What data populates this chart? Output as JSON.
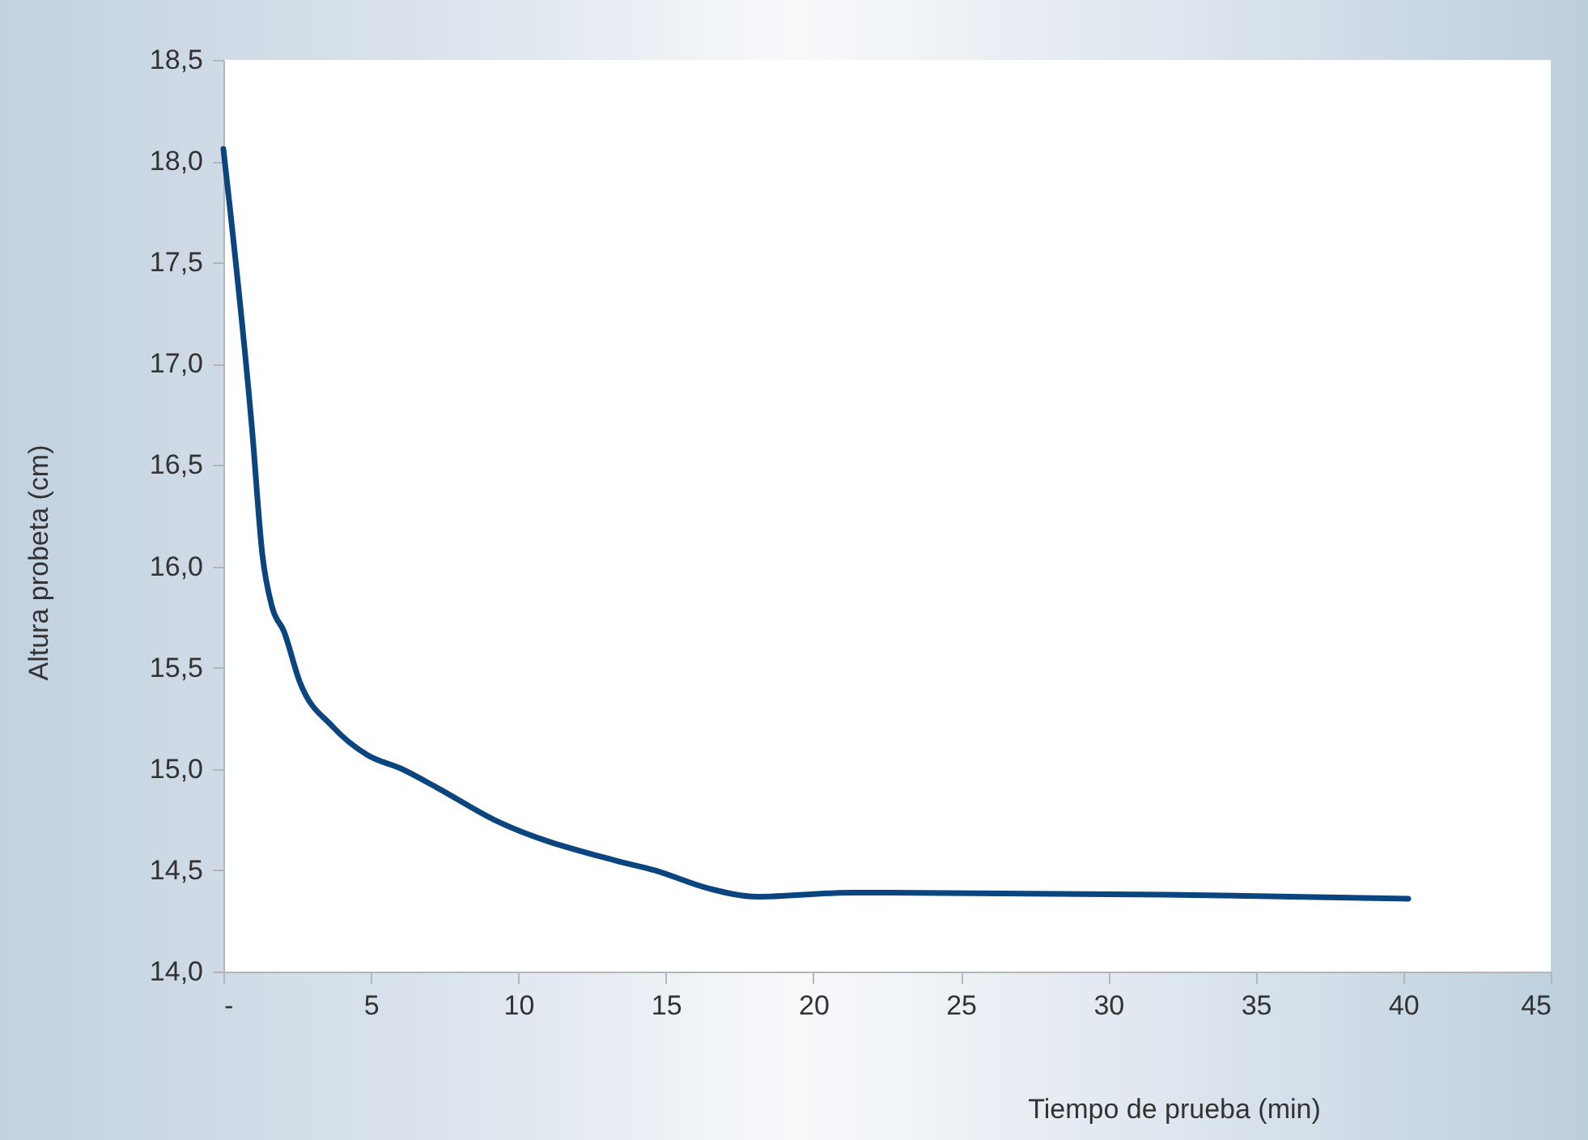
{
  "chart_data": {
    "type": "line",
    "xlabel": "Tiempo de prueba (min)",
    "ylabel": "Altura probeta (cm)",
    "x": [
      0,
      0.97,
      1.32,
      1.65,
      2.05,
      2.59,
      3.7,
      4.87,
      6.05,
      7.22,
      9.17,
      13.24,
      14.62,
      16.46,
      18.07,
      21.3,
      31.89,
      40.17
    ],
    "series": [
      {
        "color": "#0b4580",
        "values": [
          18.06,
          16.68,
          16.06,
          15.8,
          15.68,
          15.43,
          15.21,
          15.07,
          15.0,
          14.91,
          14.75,
          14.55,
          14.5,
          14.41,
          14.37,
          14.39,
          14.38,
          14.36
        ]
      }
    ],
    "xlim": [
      0,
      45
    ],
    "xticks": [
      {
        "value": 0,
        "label": "-"
      },
      5,
      10,
      15,
      20,
      25,
      30,
      35,
      40,
      45
    ],
    "ylim": [
      14,
      18.5
    ],
    "yticks": [
      {
        "value": 14,
        "label": "14,0"
      },
      {
        "value": 14.5,
        "label": "14,5"
      },
      {
        "value": 15,
        "label": "15,0"
      },
      {
        "value": 15.5,
        "label": "15,5"
      },
      {
        "value": 16,
        "label": "16,0"
      },
      {
        "value": 16.5,
        "label": "16,5"
      },
      {
        "value": 17,
        "label": "17,0"
      },
      {
        "value": 17.5,
        "label": "17,5"
      },
      {
        "value": 18,
        "label": "18,0"
      },
      {
        "value": 18.5,
        "label": "18,5"
      }
    ],
    "grid": false,
    "marker": "none",
    "line_style": "solid"
  }
}
